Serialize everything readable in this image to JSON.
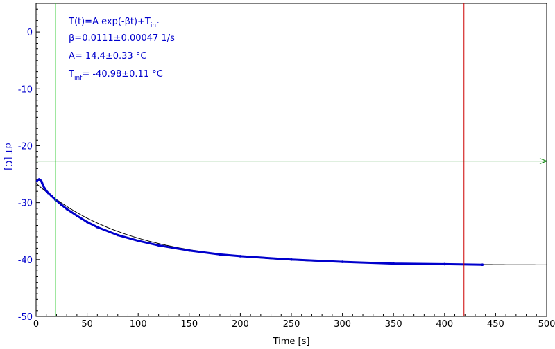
{
  "chart_data": {
    "type": "scatter",
    "title": "",
    "xlabel": "Time [s]",
    "ylabel": "dT [C]",
    "xlim": [
      0,
      500
    ],
    "ylim": [
      -50,
      5
    ],
    "x_ticks": [
      "0",
      "50",
      "100",
      "150",
      "200",
      "250",
      "300",
      "350",
      "400",
      "450",
      "500"
    ],
    "y_ticks": [
      "0",
      "-10",
      "-20",
      "-30",
      "-40",
      "-50"
    ],
    "x_tick_values": [
      0,
      50,
      100,
      150,
      200,
      250,
      300,
      350,
      400,
      450,
      500
    ],
    "y_tick_values": [
      0,
      -10,
      -20,
      -30,
      -40,
      -50
    ],
    "grid": false,
    "annotations": [
      {
        "text": "T(t)=A exp(-βt)+T",
        "sub": "inf"
      },
      {
        "text": "β=0.0111±0.00047 1/s",
        "sub": ""
      },
      {
        "text": "A= 14.4±0.33 °C",
        "sub": ""
      },
      {
        "text": "T",
        "sub": "inf",
        "tail": "= -40.98±0.11 °C"
      }
    ],
    "fit": {
      "A": 14.4,
      "beta": 0.0111,
      "T_inf": -40.98,
      "x_range": [
        0,
        500
      ]
    },
    "markers": {
      "vertical": [
        {
          "x": 19,
          "color": "#33cc33"
        },
        {
          "x": 419,
          "color": "#cc0000"
        }
      ],
      "horizontal": [
        {
          "y": -22.7,
          "color": "#008000"
        }
      ]
    },
    "series": [
      {
        "color": "#0000cc",
        "x": [
          1,
          2,
          3,
          4,
          5,
          6,
          7,
          8,
          10,
          12,
          15,
          19,
          25,
          30,
          40,
          50,
          60,
          80,
          100,
          120,
          150,
          180,
          200,
          250,
          300,
          350,
          400,
          437
        ],
        "y": [
          -26.2,
          -26.0,
          -25.9,
          -26.0,
          -26.2,
          -26.6,
          -27.0,
          -27.4,
          -27.9,
          -28.3,
          -28.8,
          -29.5,
          -30.4,
          -31.1,
          -32.3,
          -33.4,
          -34.3,
          -35.7,
          -36.7,
          -37.5,
          -38.4,
          -39.1,
          -39.4,
          -40.0,
          -40.4,
          -40.7,
          -40.8,
          -40.9
        ]
      }
    ],
    "colors": {
      "axis_text": "#0000cc",
      "fit_line": "#000000",
      "data": "#0000cc"
    }
  }
}
